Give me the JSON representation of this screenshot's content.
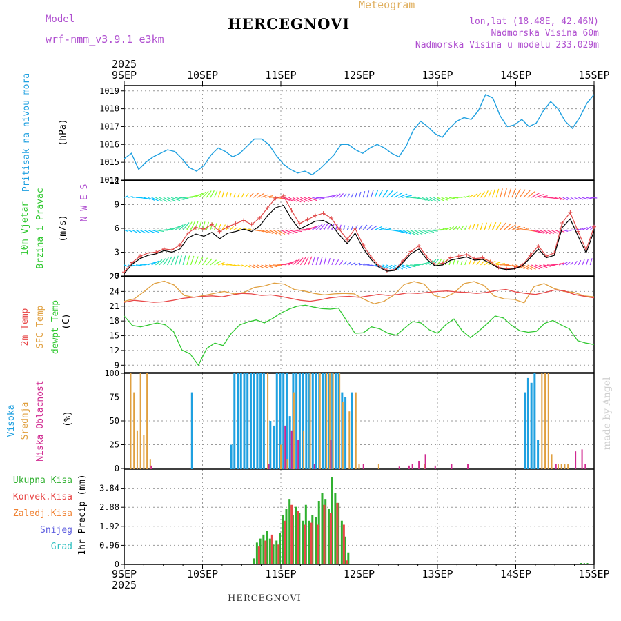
{
  "header": {
    "title": "HERCEGNOVI",
    "meteogram": "Meteogram",
    "model_label": "Model",
    "model_name": "wrf-nmm_v3.9.1 e3km",
    "coords": "lon,lat (18.48E, 42.46N)",
    "altitude": "Nadmorska Visina 60m",
    "model_altitude": "Nadmorska Visina u modelu 233.029m",
    "bottom_title": "HERCEGNOVI",
    "watermark": "made by Angel"
  },
  "axis": {
    "year": "2025",
    "dates": [
      "9SEP",
      "10SEP",
      "11SEP",
      "12SEP",
      "13SEP",
      "14SEP",
      "15SEP"
    ]
  },
  "colors": {
    "pressure": "#1fa0e0",
    "wind_speed_obs": "#000000",
    "wind_speed": "#e04848",
    "temp2m": "#e84848",
    "sfctemp": "#e0a040",
    "dewpt": "#30c830",
    "high_cloud": "#1fa0e0",
    "mid_cloud": "#e0a040",
    "low_cloud": "#d02890",
    "total_precip": "#30b030",
    "conv_precip": "#e84848",
    "frozen_precip": "#f08030",
    "snow": "#6060e0",
    "hail": "#30c0c0"
  },
  "chart_data": [
    {
      "type": "line",
      "title": "Pritisak na nivou mora",
      "ylabel": "(hPa)",
      "ylim": [
        1014,
        1019.3
      ],
      "yticks": [
        "1014",
        "1015",
        "1016",
        "1017",
        "1018",
        "1019"
      ],
      "x_start_hours": 0,
      "x_end_hours": 144,
      "series": [
        {
          "name": "Pritisak",
          "values": [
            1015.2,
            1015.5,
            1014.6,
            1015.0,
            1015.3,
            1015.5,
            1015.7,
            1015.6,
            1015.2,
            1014.7,
            1014.5,
            1014.8,
            1015.4,
            1015.8,
            1015.6,
            1015.3,
            1015.5,
            1015.9,
            1016.3,
            1016.3,
            1016.0,
            1015.4,
            1014.9,
            1014.6,
            1014.4,
            1014.5,
            1014.3,
            1014.6,
            1015.0,
            1015.4,
            1016.0,
            1016.0,
            1015.7,
            1015.5,
            1015.8,
            1016.0,
            1015.8,
            1015.5,
            1015.3,
            1015.9,
            1016.8,
            1017.3,
            1017.0,
            1016.6,
            1016.4,
            1016.9,
            1017.3,
            1017.5,
            1017.4,
            1017.9,
            1018.8,
            1018.6,
            1017.6,
            1017.0,
            1017.1,
            1017.4,
            1017.0,
            1017.2,
            1017.9,
            1018.4,
            1018.0,
            1017.3,
            1016.9,
            1017.5,
            1018.3,
            1018.8
          ]
        }
      ]
    },
    {
      "type": "line",
      "title": "10m Vjetar Brzina i Pravac",
      "ylabel": "(m/s)",
      "ylim": [
        0,
        12
      ],
      "yticks": [
        "0",
        "3",
        "6",
        "9",
        "12"
      ],
      "direction_legend": "N W E S",
      "series": [
        {
          "name": "Brzina (crna)",
          "values": [
            0.3,
            1.5,
            2.2,
            2.6,
            2.8,
            3.2,
            3.0,
            3.4,
            4.8,
            5.3,
            5.0,
            5.5,
            4.7,
            5.4,
            5.6,
            5.9,
            5.6,
            6.3,
            7.6,
            8.6,
            8.9,
            7.2,
            5.9,
            6.4,
            6.9,
            7.0,
            6.5,
            5.2,
            4.1,
            5.4,
            3.5,
            2.1,
            1.1,
            0.6,
            0.7,
            1.7,
            2.8,
            3.4,
            2.1,
            1.3,
            1.4,
            2.0,
            2.2,
            2.4,
            2.0,
            2.1,
            1.6,
            1.0,
            0.8,
            0.9,
            1.3,
            2.3,
            3.4,
            2.3,
            2.6,
            6.1,
            7.2,
            5.0,
            2.9,
            5.7
          ]
        },
        {
          "name": "Brzina (crvena)",
          "values": [
            0.5,
            1.7,
            2.5,
            2.9,
            3.0,
            3.4,
            3.3,
            3.9,
            5.4,
            6.1,
            5.9,
            6.5,
            5.6,
            6.2,
            6.6,
            7.0,
            6.5,
            7.3,
            8.6,
            9.8,
            10.1,
            8.3,
            6.6,
            7.1,
            7.6,
            7.9,
            7.3,
            5.9,
            4.6,
            6.0,
            3.9,
            2.4,
            1.3,
            0.7,
            0.8,
            1.9,
            3.1,
            3.8,
            2.4,
            1.5,
            1.6,
            2.3,
            2.5,
            2.7,
            2.2,
            2.3,
            1.8,
            1.1,
            0.9,
            1.0,
            1.4,
            2.6,
            3.8,
            2.5,
            2.9,
            6.7,
            8.0,
            5.6,
            3.3,
            6.2
          ]
        }
      ]
    },
    {
      "type": "line",
      "title": "2m Temp / SFC Temp / dewpt Temp",
      "ylabel": "(C)",
      "ylim": [
        7.5,
        27
      ],
      "yticks": [
        "9",
        "12",
        "15",
        "18",
        "21",
        "24",
        "27"
      ],
      "series": [
        {
          "name": "2m Temp",
          "values": [
            21.8,
            22.2,
            22.0,
            21.8,
            21.9,
            22.2,
            22.6,
            22.8,
            23.0,
            23.1,
            22.9,
            23.3,
            23.6,
            23.5,
            23.2,
            23.3,
            23.0,
            22.6,
            22.2,
            22.0,
            22.3,
            22.7,
            22.9,
            23.0,
            22.8,
            23.1,
            23.4,
            23.2,
            23.4,
            23.7,
            23.6,
            23.8,
            24.0,
            24.1,
            23.9,
            23.8,
            23.6,
            23.8,
            24.2,
            24.4,
            23.9,
            23.6,
            23.4,
            23.8,
            24.3,
            24.1,
            23.4,
            23.0,
            22.7
          ]
        },
        {
          "name": "SFC Temp",
          "values": [
            22.0,
            22.5,
            24.0,
            25.6,
            26.1,
            25.3,
            23.2,
            22.8,
            23.2,
            23.6,
            24.0,
            23.5,
            23.8,
            24.8,
            25.1,
            25.7,
            25.5,
            24.4,
            24.1,
            23.6,
            23.3,
            23.5,
            23.6,
            23.5,
            22.4,
            21.5,
            22.0,
            23.3,
            25.4,
            26.0,
            25.5,
            23.2,
            22.7,
            23.7,
            25.6,
            26.0,
            25.2,
            23.1,
            22.5,
            22.4,
            21.7,
            25.0,
            25.6,
            24.6,
            24.0,
            23.8,
            23.1,
            22.9
          ]
        },
        {
          "name": "dewpt Temp",
          "values": [
            19.0,
            17.1,
            16.8,
            17.2,
            17.6,
            17.2,
            15.8,
            12.1,
            11.3,
            9.0,
            12.4,
            13.5,
            13.0,
            15.5,
            17.2,
            17.8,
            18.2,
            17.6,
            18.5,
            19.6,
            20.4,
            21.0,
            21.2,
            20.8,
            20.5,
            20.4,
            20.6,
            18.0,
            15.5,
            15.6,
            16.8,
            16.4,
            15.5,
            15.1,
            16.5,
            17.9,
            17.6,
            16.2,
            15.5,
            17.2,
            18.4,
            16.0,
            14.6,
            15.9,
            17.4,
            19.0,
            18.6,
            17.1,
            16.0,
            15.7,
            15.9,
            17.5,
            18.1,
            17.2,
            16.4,
            14.0,
            13.5,
            13.2
          ]
        }
      ]
    },
    {
      "type": "bar",
      "title": "Visoka / Srednja / Niska Oblacnost",
      "ylabel": "(%)",
      "ylim": [
        0,
        100
      ],
      "yticks": [
        "0",
        "25",
        "50",
        "75",
        "100"
      ],
      "series": [
        {
          "name": "Visoka Oblacnost",
          "hours": [
            21,
            33,
            34,
            35,
            36,
            37,
            38,
            39,
            40,
            41,
            42,
            43,
            45,
            46,
            47,
            48,
            49,
            50,
            51,
            52,
            53,
            54,
            55,
            56,
            57,
            58,
            59,
            60,
            61,
            62,
            63,
            64,
            65,
            66,
            67,
            68,
            70,
            123,
            124,
            125,
            126,
            127
          ],
          "values": [
            80,
            25,
            100,
            100,
            100,
            100,
            100,
            100,
            100,
            100,
            100,
            100,
            50,
            45,
            100,
            100,
            100,
            100,
            55,
            100,
            100,
            100,
            100,
            100,
            100,
            100,
            100,
            100,
            100,
            100,
            100,
            100,
            100,
            100,
            80,
            75,
            80,
            80,
            95,
            90,
            100,
            30
          ]
        },
        {
          "name": "Srednja Oblacnost",
          "hours": [
            2,
            3,
            4,
            5,
            6,
            7,
            8,
            44,
            48,
            50,
            52,
            55,
            57,
            60,
            62,
            63,
            64,
            66,
            67,
            69,
            71,
            72,
            78,
            92,
            128,
            129,
            130,
            131,
            133,
            134,
            135,
            136
          ],
          "values": [
            100,
            80,
            40,
            100,
            35,
            100,
            10,
            100,
            25,
            10,
            80,
            40,
            100,
            100,
            100,
            100,
            100,
            100,
            70,
            60,
            80,
            5,
            5,
            5,
            100,
            100,
            100,
            15,
            5,
            5,
            5,
            5
          ]
        },
        {
          "name": "Niska Oblacnost",
          "hours": [
            8,
            44,
            49,
            51,
            53,
            58,
            63,
            73,
            84,
            87,
            88,
            90,
            92,
            95,
            100,
            105,
            132,
            138,
            140,
            141
          ],
          "values": [
            3,
            5,
            45,
            40,
            30,
            5,
            30,
            5,
            2,
            3,
            5,
            8,
            15,
            3,
            5,
            5,
            5,
            18,
            20,
            5
          ]
        }
      ]
    },
    {
      "type": "bar",
      "title": "1hr Precip",
      "ylabel": "1hr Precip (mm)",
      "ylim": [
        0,
        4.8
      ],
      "yticks": [
        "0",
        "0.96",
        "1.92",
        "2.88",
        "3.84"
      ],
      "legend": [
        "Ukupna Kisa",
        "Konvek.Kisa",
        "Zaledj.Kisa",
        "Snijeg",
        "Grad"
      ],
      "series": [
        {
          "name": "Ukupna Kisa",
          "hours": [
            40,
            41,
            42,
            43,
            44,
            45,
            46,
            47,
            48,
            49,
            50,
            51,
            52,
            53,
            54,
            55,
            56,
            57,
            58,
            59,
            60,
            61,
            62,
            63,
            64,
            65,
            66,
            67,
            68,
            69
          ],
          "values": [
            0.3,
            1.1,
            1.3,
            1.5,
            1.7,
            1.3,
            1.0,
            1.2,
            1.6,
            2.5,
            2.8,
            3.3,
            2.5,
            2.9,
            2.6,
            2.2,
            3.0,
            2.2,
            2.5,
            2.4,
            3.2,
            3.6,
            3.3,
            2.8,
            4.4,
            3.6,
            3.1,
            2.2,
            1.4,
            0.6
          ]
        },
        {
          "name": "Konvek.Kisa",
          "hours": [
            41,
            43,
            45,
            47,
            49,
            51,
            53,
            55,
            57,
            59,
            61,
            63,
            65,
            67,
            68
          ],
          "values": [
            0.9,
            1.2,
            1.5,
            1.0,
            2.2,
            3.0,
            2.7,
            2.0,
            2.1,
            2.0,
            3.0,
            2.6,
            3.1,
            2.0,
            0.2
          ]
        }
      ]
    }
  ]
}
